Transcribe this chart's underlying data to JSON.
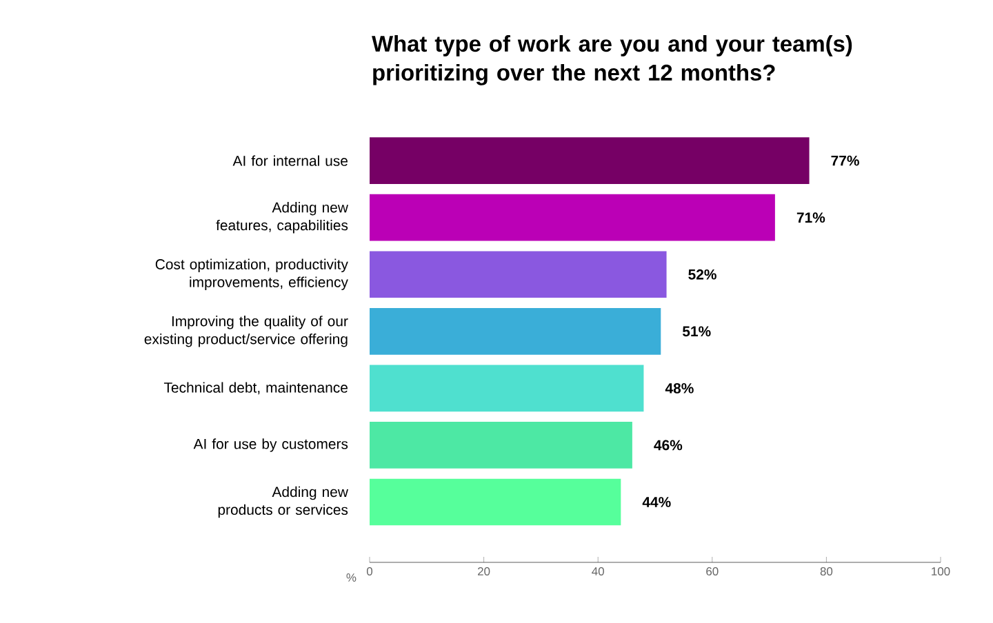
{
  "chart_data": {
    "type": "bar",
    "orientation": "horizontal",
    "title": "What type of work are you and your team(s) prioritizing over the next 12 months?",
    "xlabel": "%",
    "categories": [
      "AI for internal use",
      "Adding new features, capabilities",
      "Cost optimization, productivity improvements, efficiency",
      "Improving the quality of our existing product/service offering",
      "Technical debt, maintenance",
      "AI for use by customers",
      "Adding new products or services"
    ],
    "values": [
      77,
      71,
      52,
      51,
      48,
      46,
      44
    ],
    "value_labels": [
      "77%",
      "71%",
      "52%",
      "51%",
      "48%",
      "46%",
      "44%"
    ],
    "colors": [
      "#760065",
      "#bb00b6",
      "#8a58e0",
      "#3aaed8",
      "#4fe0cf",
      "#4de8a4",
      "#56ff9b"
    ],
    "xlim": [
      0,
      100
    ],
    "xticks": [
      0,
      20,
      40,
      60,
      80,
      100
    ],
    "grid": false
  }
}
